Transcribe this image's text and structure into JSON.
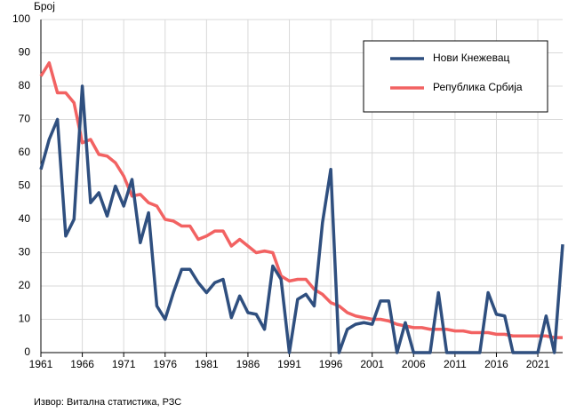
{
  "chart_data": {
    "type": "line",
    "y_label": "Број",
    "source": "Извор: Витална статистика, РЗС",
    "x": [
      1961,
      1962,
      1963,
      1964,
      1965,
      1966,
      1967,
      1968,
      1969,
      1970,
      1971,
      1972,
      1973,
      1974,
      1975,
      1976,
      1977,
      1978,
      1979,
      1980,
      1981,
      1982,
      1983,
      1984,
      1985,
      1986,
      1987,
      1988,
      1989,
      1990,
      1991,
      1992,
      1993,
      1994,
      1995,
      1996,
      1997,
      1998,
      1999,
      2000,
      2001,
      2002,
      2003,
      2004,
      2005,
      2006,
      2007,
      2008,
      2009,
      2010,
      2011,
      2012,
      2013,
      2014,
      2015,
      2016,
      2017,
      2018,
      2019,
      2020,
      2021,
      2022,
      2023,
      2024
    ],
    "series": [
      {
        "name": "Нови Кнежевац",
        "color": "#2f4f7f",
        "values": [
          55,
          64,
          70,
          35,
          40,
          80,
          45,
          48,
          41,
          50,
          44,
          52,
          33,
          42,
          14,
          10,
          18,
          25,
          25,
          21,
          18,
          21,
          22,
          10.5,
          17,
          12,
          11.5,
          7,
          26,
          22,
          0,
          16,
          17.5,
          14,
          39,
          55,
          0,
          7,
          8.5,
          9,
          8.5,
          15.5,
          15.5,
          0,
          9,
          0,
          0,
          0,
          18,
          0,
          0,
          0,
          0,
          0,
          18,
          11.5,
          11,
          0,
          0,
          0,
          0,
          11,
          0,
          32.5
        ]
      },
      {
        "name": "Република Србија",
        "color": "#f26262",
        "values": [
          83,
          87,
          78,
          78,
          75,
          63,
          64,
          59.5,
          59,
          57,
          53,
          47,
          47.5,
          45,
          44,
          40,
          39.5,
          38,
          38,
          34,
          35,
          36.5,
          36.5,
          32,
          34,
          32,
          30,
          30.5,
          30,
          23,
          21.5,
          22,
          22,
          19,
          17.5,
          15,
          14,
          12,
          11,
          10.5,
          10,
          10,
          9.5,
          8.5,
          8,
          7.5,
          7.5,
          7,
          7,
          7,
          6.5,
          6.5,
          6,
          6,
          6,
          5.5,
          5.5,
          5,
          5,
          5,
          5,
          5,
          4.5,
          4.5
        ]
      }
    ],
    "xlim": [
      1961,
      2024
    ],
    "ylim": [
      0,
      100
    ],
    "xticks": [
      1961,
      1966,
      1971,
      1976,
      1981,
      1986,
      1991,
      1996,
      2001,
      2006,
      2011,
      2016,
      2021
    ],
    "yticks": [
      0,
      10,
      20,
      30,
      40,
      50,
      60,
      70,
      80,
      90,
      100
    ],
    "grid": true,
    "legend": "upper right"
  }
}
